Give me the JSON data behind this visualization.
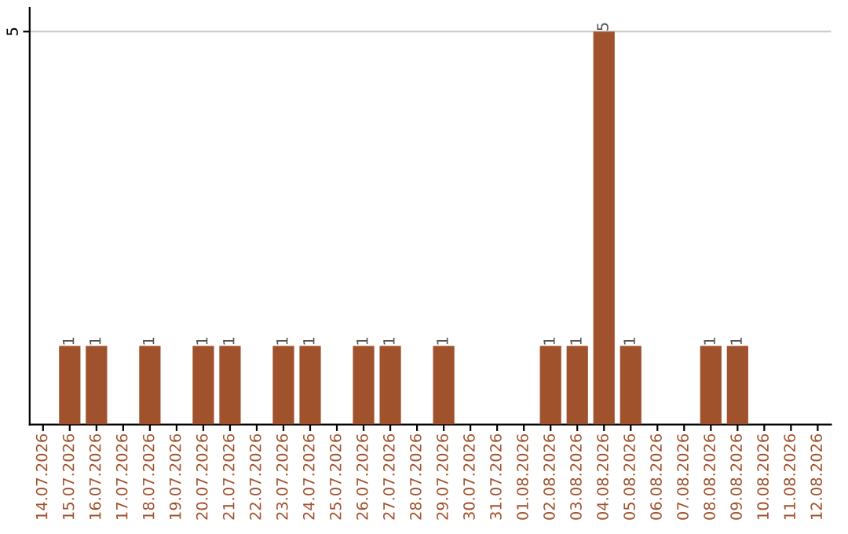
{
  "chart_data": {
    "type": "bar",
    "categories": [
      "14.07.2026",
      "15.07.2026",
      "16.07.2026",
      "17.07.2026",
      "18.07.2026",
      "19.07.2026",
      "20.07.2026",
      "21.07.2026",
      "22.07.2026",
      "23.07.2026",
      "24.07.2026",
      "25.07.2026",
      "26.07.2026",
      "27.07.2026",
      "28.07.2026",
      "29.07.2026",
      "30.07.2026",
      "31.07.2026",
      "01.08.2026",
      "02.08.2026",
      "03.08.2026",
      "04.08.2026",
      "05.08.2026",
      "06.08.2026",
      "07.08.2026",
      "08.08.2026",
      "09.08.2026",
      "10.08.2026",
      "11.08.2026",
      "12.08.2026"
    ],
    "values": [
      0,
      1,
      1,
      0,
      1,
      0,
      1,
      1,
      0,
      1,
      1,
      0,
      1,
      1,
      0,
      1,
      0,
      0,
      0,
      1,
      1,
      5,
      1,
      0,
      0,
      1,
      1,
      0,
      0,
      0
    ],
    "value_labels": [
      null,
      "1",
      "1",
      null,
      "1",
      null,
      "1",
      "1",
      null,
      "1",
      "1",
      null,
      "1",
      "1",
      null,
      "1",
      null,
      null,
      null,
      "1",
      "1",
      "5",
      "1",
      null,
      null,
      "1",
      "1",
      null,
      null,
      null
    ],
    "color": "#a0522d",
    "ylim": [
      0,
      5.3
    ],
    "yticks": [
      5
    ],
    "grid": "y",
    "legend": false
  }
}
